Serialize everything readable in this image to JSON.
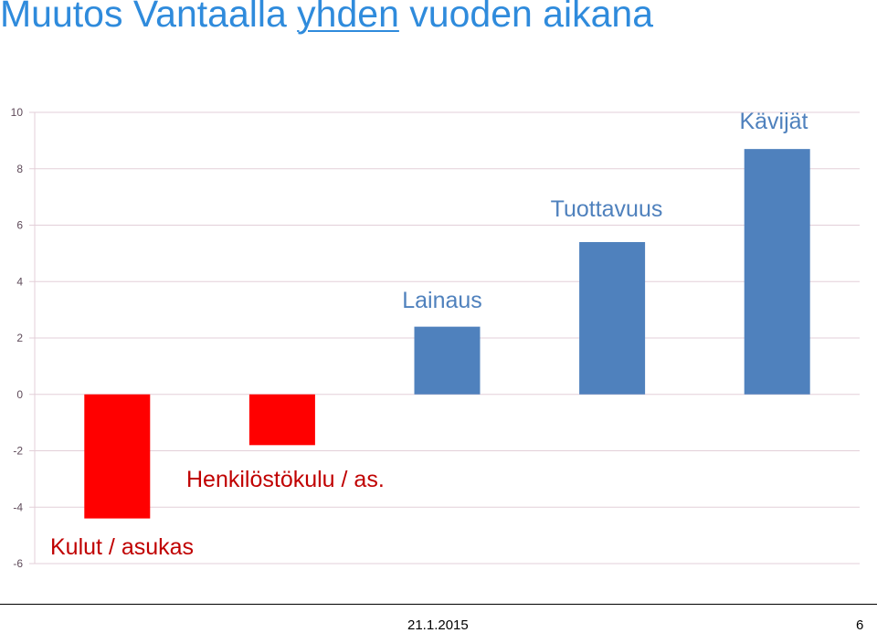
{
  "slide": {
    "title_parts": [
      "Muutos Vantaalla ",
      "yhden",
      " vuoden aikana"
    ],
    "footer_date": "21.1.2015",
    "page_number": "6"
  },
  "chart_data": {
    "type": "bar",
    "categories": [
      "Kulut / asukas",
      "Henkilöstökulu / as.",
      "Lainaus",
      "Tuottavuus",
      "Kävijät"
    ],
    "values": [
      -4.4,
      -1.8,
      2.4,
      5.4,
      8.7
    ],
    "ylim": [
      -6,
      10
    ],
    "yticks": [
      "-6",
      "-4",
      "-2",
      "0",
      "2",
      "4",
      "6",
      "8",
      "10"
    ],
    "grid": true,
    "colors": {
      "negative": "#ff0000",
      "positive": "#4f81bd",
      "negative_label": "#c00000",
      "positive_label": "#4f81bd",
      "grid": "#e3cfd8",
      "tick_label": "#5f4b5a"
    }
  }
}
